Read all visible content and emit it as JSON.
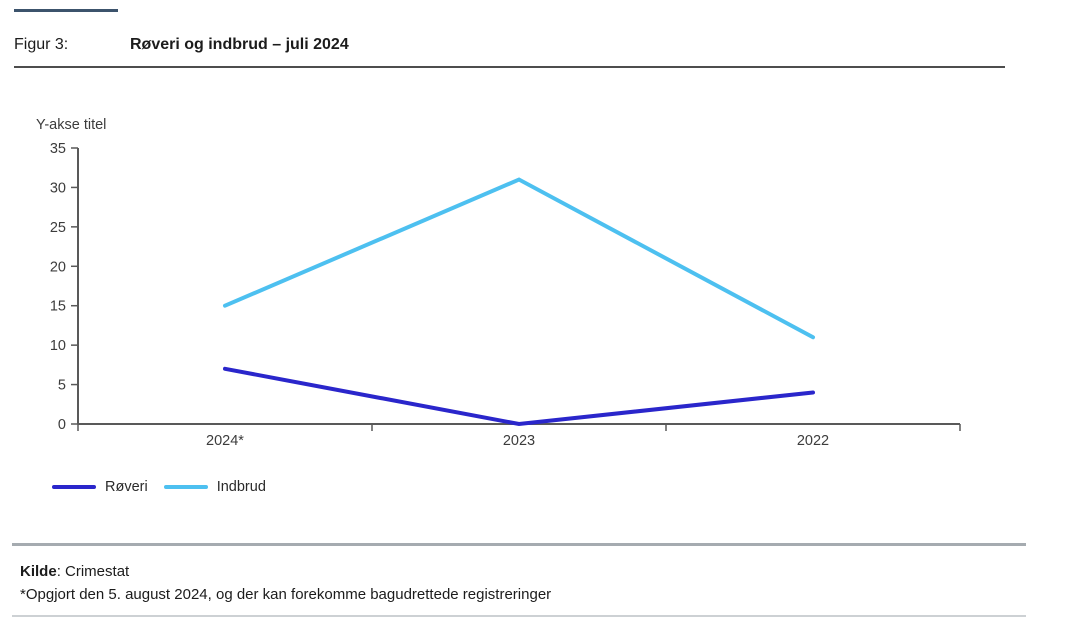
{
  "header": {
    "figure_label": "Figur 3:",
    "title": "Røveri og indbrud – juli 2024"
  },
  "accent_color": "#3c536c",
  "chart_data": {
    "type": "line",
    "categories": [
      "2024*",
      "2023",
      "2022"
    ],
    "series": [
      {
        "name": "Røveri",
        "values": [
          7,
          0,
          4
        ],
        "color": "#2a26cb"
      },
      {
        "name": "Indbrud",
        "values": [
          15,
          31,
          11
        ],
        "color": "#4dc0f0"
      }
    ],
    "title": "Røveri og indbrud – juli 2024",
    "xlabel": "",
    "ylabel": "Y-akse titel",
    "ylim": [
      0,
      35
    ],
    "ytick_step": 5,
    "grid": false,
    "legend_position": "bottom-left",
    "axis_color": "#595959",
    "tick_label_color": "#3c3c3c"
  },
  "footer": {
    "source_label": "Kilde",
    "source_rest": ": Crimestat",
    "note": "*Opgjort den 5. august 2024, og der kan forekomme bagudrettede registreringer"
  }
}
